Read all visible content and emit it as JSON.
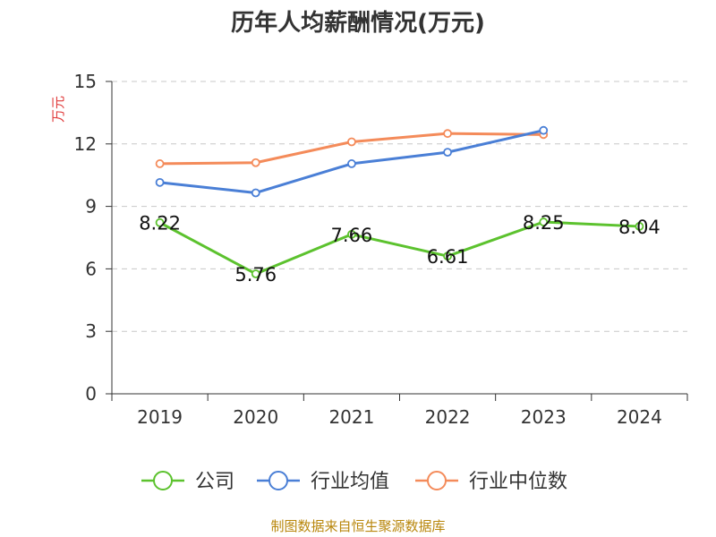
{
  "chart_data": {
    "type": "line",
    "title": "历年人均薪酬情况(万元)",
    "ylabel": "万元",
    "xlabel": "",
    "categories": [
      "2019",
      "2020",
      "2021",
      "2022",
      "2023",
      "2024"
    ],
    "ylim": [
      0,
      15
    ],
    "yticks": [
      0,
      3,
      6,
      9,
      12,
      15
    ],
    "grid": true,
    "legend_position": "bottom",
    "series": [
      {
        "name": "公司",
        "color": "#5cc22e",
        "values": [
          8.22,
          5.76,
          7.66,
          6.61,
          8.25,
          8.04
        ],
        "labels": [
          "8.22",
          "5.76",
          "7.66",
          "6.61",
          "8.25",
          "8.04"
        ]
      },
      {
        "name": "行业均值",
        "color": "#4a7fd6",
        "values": [
          10.15,
          9.65,
          11.05,
          11.6,
          12.65,
          null
        ]
      },
      {
        "name": "行业中位数",
        "color": "#f48b5a",
        "values": [
          11.05,
          11.1,
          12.1,
          12.5,
          12.45,
          null
        ]
      }
    ],
    "source": "制图数据来自恒生聚源数据库"
  }
}
